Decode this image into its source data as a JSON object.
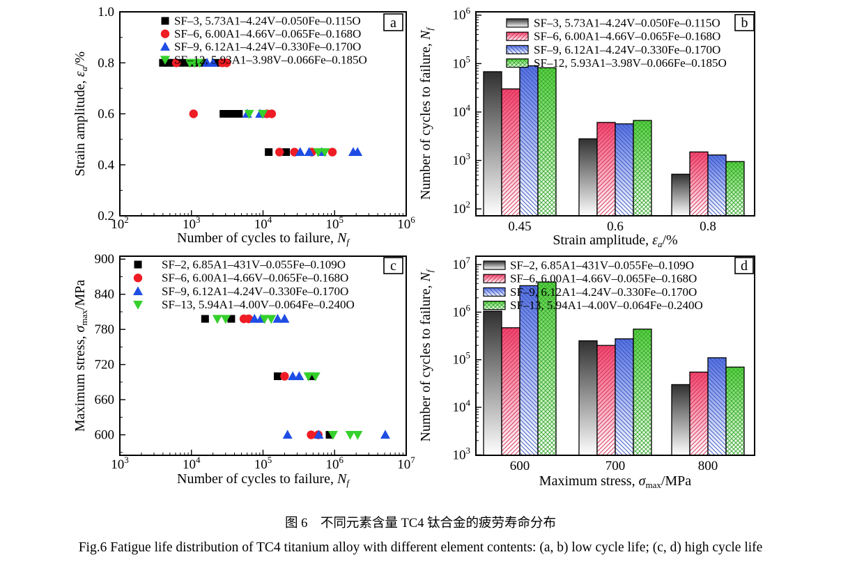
{
  "figure": {
    "caption_zh": "图 6　不同元素含量 TC4 钛合金的疲劳寿命分布",
    "caption_en": "Fig.6   Fatigue life distribution of TC4 titanium alloy with different element contents: (a, b) low cycle life; (c, d) high cycle life"
  },
  "chart_data": [
    {
      "id": "a",
      "panel_label": "a",
      "type": "scatter",
      "x": {
        "scale": "log",
        "min": 100,
        "max": 1000000,
        "ticks_exp": [
          2,
          3,
          4,
          5,
          6
        ],
        "label": {
          "pre": "Number of cycles to failure, ",
          "it": "N",
          "sub": "f",
          "suf": ""
        }
      },
      "y": {
        "scale": "linear",
        "min": 0.2,
        "max": 1.0,
        "ticks": [
          0.2,
          0.4,
          0.6,
          0.8,
          1.0
        ],
        "minor_ticks": [
          0.3,
          0.5,
          0.7,
          0.9
        ],
        "decimals": 1,
        "label": {
          "pre": "Strain amplitude, ",
          "it": "ε",
          "sub": "a",
          "suf": "/%"
        }
      },
      "series": [
        {
          "name": "SF–3, 5.73A1–4.24V–0.050Fe–0.115O",
          "marker": "square",
          "color": "#000000",
          "points": [
            [
              400,
              0.8
            ],
            [
              470,
              0.8
            ],
            [
              560,
              0.8
            ],
            [
              680,
              0.8
            ],
            [
              850,
              0.8
            ],
            [
              1100,
              0.8
            ],
            [
              1500,
              0.8
            ],
            [
              2200,
              0.8
            ],
            [
              2800,
              0.6
            ],
            [
              3300,
              0.6
            ],
            [
              3900,
              0.6
            ],
            [
              4600,
              0.6
            ],
            [
              12000,
              0.45
            ],
            [
              21000,
              0.45
            ]
          ]
        },
        {
          "name": "SF–6, 6.00A1–4.66V–0.065Fe–0.168O",
          "marker": "circle",
          "color": "#ee1c25",
          "points": [
            [
              615,
              0.8
            ],
            [
              2700,
              0.8
            ],
            [
              3100,
              0.8
            ],
            [
              1070,
              0.6
            ],
            [
              11300,
              0.6
            ],
            [
              13200,
              0.6
            ],
            [
              17000,
              0.45
            ],
            [
              27500,
              0.45
            ],
            [
              48000,
              0.45
            ],
            [
              93000,
              0.45
            ]
          ]
        },
        {
          "name": "SF–9, 6.12A1–4.24V–0.330Fe–0.170O",
          "marker": "triangle-up",
          "color": "#1f4de4",
          "points": [
            [
              1650,
              0.8
            ],
            [
              2000,
              0.8
            ],
            [
              6000,
              0.6
            ],
            [
              9100,
              0.6
            ],
            [
              33000,
              0.45
            ],
            [
              44000,
              0.45
            ],
            [
              66000,
              0.45
            ],
            [
              182000,
              0.45
            ],
            [
              209000,
              0.45
            ]
          ]
        },
        {
          "name": "SF–12, 5.93A1–3.98V–0.066Fe–0.185O",
          "marker": "triangle-down",
          "color": "#35d02c",
          "points": [
            [
              950,
              0.8
            ],
            [
              1100,
              0.8
            ],
            [
              1300,
              0.8
            ],
            [
              6400,
              0.6
            ],
            [
              9900,
              0.6
            ],
            [
              59000,
              0.45
            ],
            [
              73000,
              0.45
            ]
          ]
        }
      ]
    },
    {
      "id": "b",
      "panel_label": "b",
      "type": "bar",
      "x": {
        "categories": [
          "0.45",
          "0.6",
          "0.8"
        ],
        "label": {
          "pre": "Strain amplitude, ",
          "it": "ε",
          "sub": "a",
          "suf": "/%"
        }
      },
      "y": {
        "scale": "log",
        "min": 100,
        "max": 1000000,
        "ticks_exp": [
          2,
          3,
          4,
          5,
          6
        ],
        "label": {
          "pre": "Number of cycles to failure, ",
          "it": "N",
          "sub": "f",
          "suf": ""
        }
      },
      "series": [
        {
          "name": "SF–3, 5.73A1–4.24V–0.050Fe–0.115O",
          "top_color": "#303030",
          "hatch": "none",
          "hatch_color": "#303030",
          "values": [
            68000,
            2800,
            520
          ]
        },
        {
          "name": "SF–6, 6.00A1–4.66V–0.065Fe–0.168O",
          "top_color": "#f0436b",
          "hatch": "diag-up",
          "hatch_color": "#d12a55",
          "values": [
            30000,
            6100,
            1500
          ]
        },
        {
          "name": "SF–9, 6.12A1–4.24V–0.330Fe–0.170O",
          "top_color": "#5570e0",
          "hatch": "diag-down",
          "hatch_color": "#3350c0",
          "values": [
            90000,
            5700,
            1300
          ]
        },
        {
          "name": "SF–12, 5.93A1–3.98V–0.066Fe–0.185O",
          "top_color": "#57d23f",
          "hatch": "cross",
          "hatch_color": "#34a52c",
          "values": [
            82000,
            6700,
            950
          ]
        }
      ]
    },
    {
      "id": "c",
      "panel_label": "c",
      "type": "scatter",
      "x": {
        "scale": "log",
        "min": 1000,
        "max": 10000000,
        "ticks_exp": [
          3,
          4,
          5,
          6,
          7
        ],
        "label": {
          "pre": "Number of cycles to failure, ",
          "it": "N",
          "sub": "f",
          "suf": ""
        }
      },
      "y": {
        "scale": "linear",
        "min": 565,
        "max": 905,
        "ticks": [
          600,
          660,
          720,
          780,
          840,
          900
        ],
        "minor_ticks": [
          570,
          630,
          690,
          750,
          810,
          870
        ],
        "decimals": 0,
        "label": {
          "pre": "Maximum stress, ",
          "it": "σ",
          "sub": "max",
          "suf": "/MPa"
        }
      },
      "series": [
        {
          "name": "SF–2, 6.85A1–431V–0.055Fe–0.109O",
          "marker": "square",
          "color": "#000000",
          "points": [
            [
              15500,
              798
            ],
            [
              36000,
              798
            ],
            [
              160000,
              700
            ],
            [
              470000,
              700
            ],
            [
              850000,
              600
            ]
          ]
        },
        {
          "name": "SF–6, 6.00A1–4.66V–0.065Fe–0.168O",
          "marker": "circle",
          "color": "#ee1c25",
          "points": [
            [
              54000,
              798
            ],
            [
              63000,
              798
            ],
            [
              200000,
              700
            ],
            [
              470000,
              600
            ],
            [
              590000,
              600
            ]
          ]
        },
        {
          "name": "SF–9, 6.12A1–4.24V–0.330Fe–0.170O",
          "marker": "triangle-up",
          "color": "#1f4de4",
          "points": [
            [
              76000,
              798
            ],
            [
              93000,
              798
            ],
            [
              160000,
              798
            ],
            [
              200000,
              798
            ],
            [
              260000,
              700
            ],
            [
              320000,
              700
            ],
            [
              220000,
              600
            ],
            [
              600000,
              600
            ],
            [
              5100000,
              600
            ]
          ]
        },
        {
          "name": "SF–13, 5.94A1–4.00V–0.064Fe–0.240O",
          "marker": "triangle-down",
          "color": "#35d02c",
          "points": [
            [
              23000,
              798
            ],
            [
              30000,
              798
            ],
            [
              105000,
              798
            ],
            [
              130000,
              798
            ],
            [
              430000,
              700
            ],
            [
              540000,
              700
            ],
            [
              950000,
              600
            ],
            [
              1650000,
              600
            ],
            [
              2100000,
              600
            ]
          ]
        }
      ]
    },
    {
      "id": "d",
      "panel_label": "d",
      "type": "bar",
      "x": {
        "categories": [
          "600",
          "700",
          "800"
        ],
        "label": {
          "pre": "Maximum stress, ",
          "it": "σ",
          "sub": "max",
          "suf": "/MPa"
        }
      },
      "y": {
        "scale": "log",
        "min": 1000,
        "max": 10000000,
        "ticks_exp": [
          3,
          4,
          5,
          6,
          7
        ],
        "label": {
          "pre": "Number of cycles to failure, ",
          "it": "N",
          "sub": "f",
          "suf": ""
        }
      },
      "series": [
        {
          "name": "SF–2, 6.85A1–431V–0.055Fe–0.109O",
          "top_color": "#303030",
          "hatch": "none",
          "hatch_color": "#303030",
          "values": [
            1050000,
            250000,
            30000
          ]
        },
        {
          "name": "SF–6, 6.00A1–4.66V–0.065Fe–0.168O",
          "top_color": "#f0436b",
          "hatch": "diag-up",
          "hatch_color": "#d12a55",
          "values": [
            470000,
            200000,
            55000
          ]
        },
        {
          "name": "SF–9, 6.12A1–4.24V–0.330Fe–0.170O",
          "top_color": "#5570e0",
          "hatch": "diag-down",
          "hatch_color": "#3350c0",
          "values": [
            3600000,
            275000,
            110000
          ]
        },
        {
          "name": "SF–13, 5.94A1–4.00V–0.064Fe–0.240O",
          "top_color": "#57d23f",
          "hatch": "cross",
          "hatch_color": "#34a52c",
          "values": [
            4300000,
            440000,
            70000
          ]
        }
      ]
    }
  ]
}
